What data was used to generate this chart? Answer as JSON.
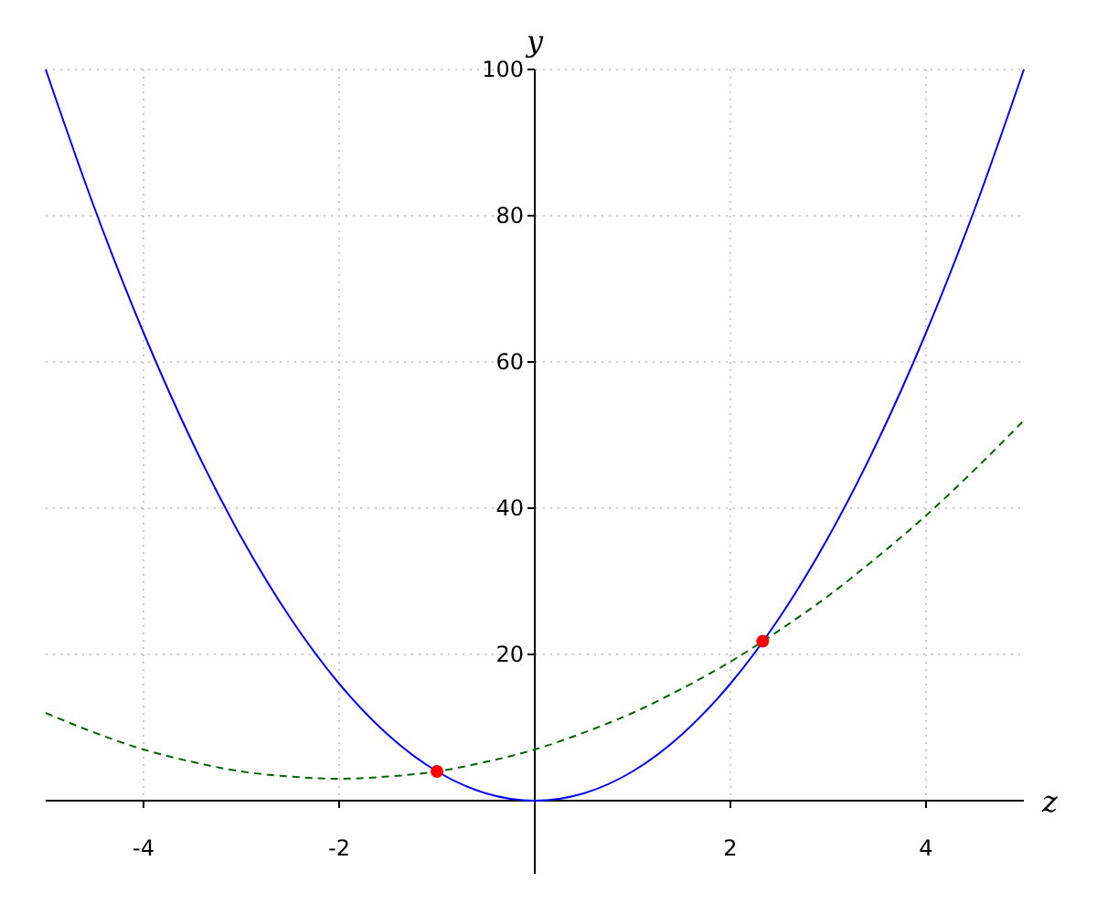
{
  "chart_data": {
    "type": "line",
    "xlabel": "z",
    "ylabel": "y",
    "xlim": [
      -5,
      5
    ],
    "ylim": [
      -10,
      100
    ],
    "xticks": [
      -4,
      -2,
      2,
      4
    ],
    "yticks": [
      20,
      40,
      60,
      80,
      100
    ],
    "grid": true,
    "series": [
      {
        "color": "#0000ff",
        "line_style": "solid",
        "x": [
          -5,
          -4.5,
          -4,
          -3.5,
          -3,
          -2.5,
          -2,
          -1.5,
          -1,
          -0.5,
          0,
          0.5,
          1,
          1.5,
          2,
          2.5,
          3,
          3.5,
          4,
          4.5,
          5
        ],
        "values": [
          100,
          81,
          64,
          49,
          36,
          25,
          16,
          9,
          4,
          1,
          0,
          1,
          4,
          9,
          16,
          25,
          36,
          49,
          64,
          81,
          100
        ]
      },
      {
        "color": "#006400",
        "line_style": "dashed",
        "x": [
          -5,
          -4.5,
          -4,
          -3.5,
          -3,
          -2.5,
          -2,
          -1.5,
          -1,
          -0.5,
          0,
          0.5,
          1,
          1.5,
          2,
          2.5,
          3,
          3.5,
          4,
          4.5,
          5
        ],
        "values": [
          12,
          9.3,
          7,
          5.3,
          4,
          3.3,
          3,
          3.3,
          4,
          5.3,
          7,
          9.3,
          12,
          15.3,
          19,
          23.3,
          28,
          33.3,
          39,
          45.3,
          52
        ]
      },
      {
        "type": "scatter",
        "color": "#ff0000",
        "marker": "circle",
        "x": [
          -1,
          2.33
        ],
        "values": [
          4,
          21.8
        ]
      }
    ]
  }
}
